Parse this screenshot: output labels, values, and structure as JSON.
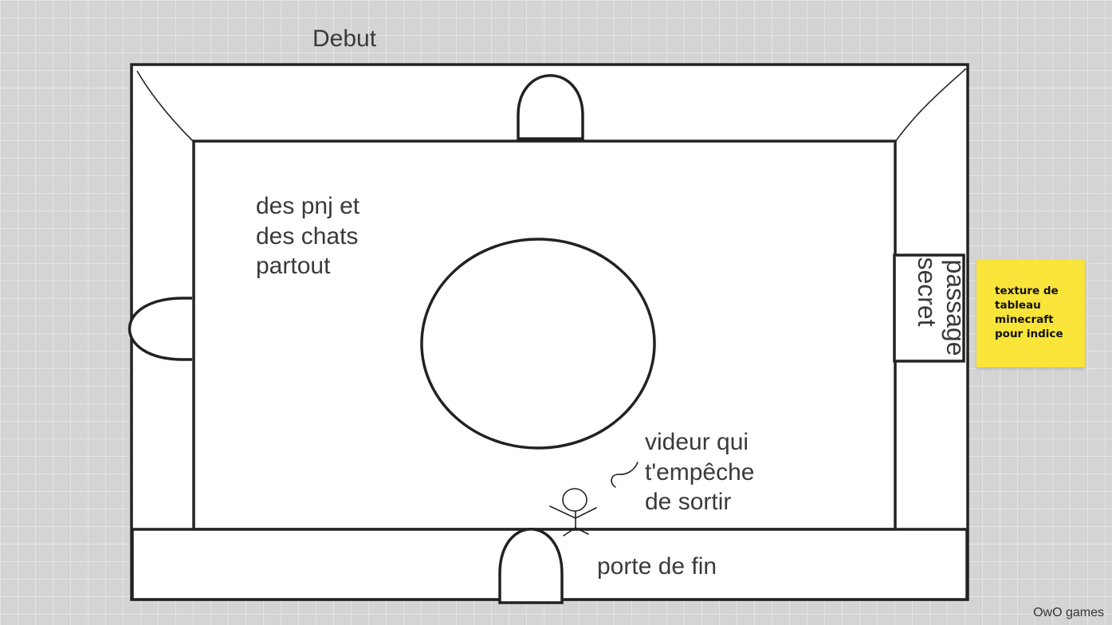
{
  "board": {
    "title_label": "Debut",
    "note_npcs": [
      "des pnj et",
      "des chats",
      "partout"
    ],
    "note_bouncer": [
      "videur qui",
      "t'empêche",
      "de sortir"
    ],
    "secret_passage": [
      "passage",
      "secret"
    ],
    "exit_door_label": "porte de fin",
    "sticky_note": "texture de tableau minecraft pour indice"
  },
  "footer": {
    "brand": "OwO games"
  },
  "colors": {
    "board_background": "#d4d4d4",
    "grid_line": "#e4e4e4",
    "stroke": "#222222",
    "text": "#3a3a3a",
    "sticky_note": "#f9e43a"
  }
}
